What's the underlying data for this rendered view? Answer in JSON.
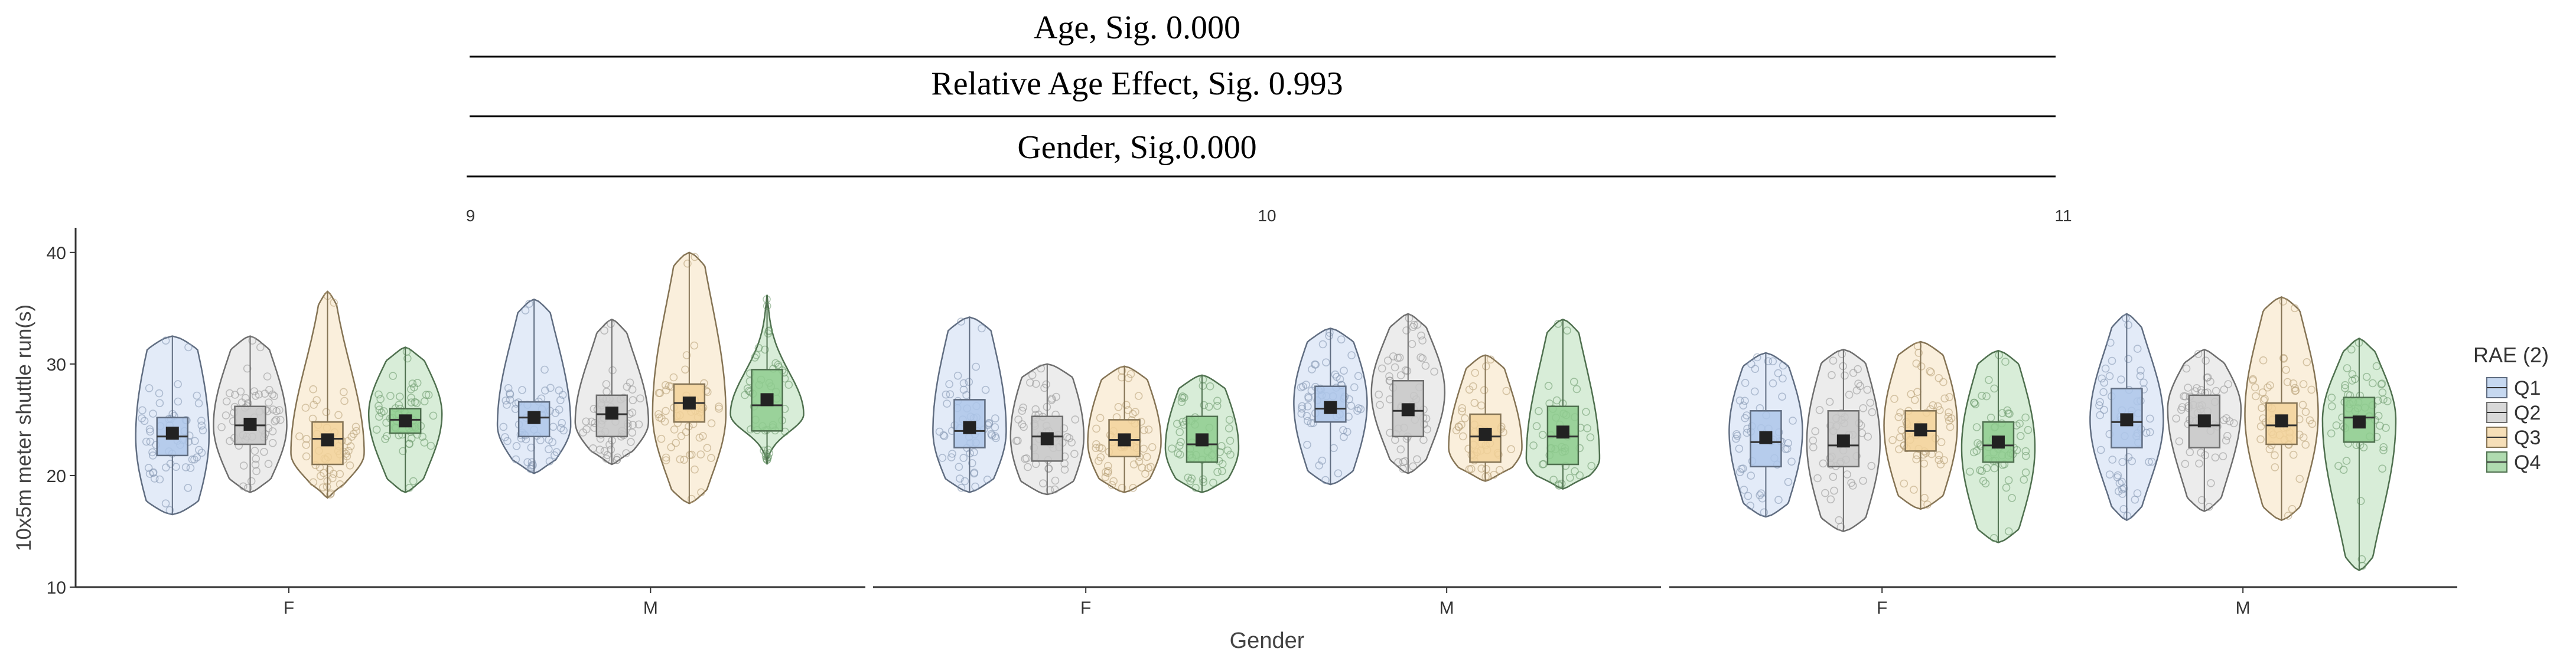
{
  "header": {
    "age_sig": "Age, Sig. 0.000",
    "rae_sig": "Relative Age Effect, Sig. 0.993",
    "gender_sig": "Gender, Sig.0.000"
  },
  "colors": {
    "Q1": "#aec7ea",
    "Q2": "#c8c8c8",
    "Q3": "#f2d29a",
    "Q4": "#8fcc8f",
    "axis": "#333333",
    "mean": "#222222"
  },
  "chart_data": {
    "type": "violin",
    "title": "",
    "xlabel": "Gender",
    "ylabel": "10x5m meter shuttle run(s)",
    "ylim": [
      10,
      42
    ],
    "yticks": [
      10,
      20,
      30,
      40
    ],
    "genders": [
      "F",
      "M"
    ],
    "legend": {
      "title": "RAE (2)",
      "position": "right",
      "entries": [
        "Q1",
        "Q2",
        "Q3",
        "Q4"
      ]
    },
    "facets": [
      {
        "label": "9",
        "groups": {
          "F": [
            {
              "q": "Q1",
              "min": 16.5,
              "max": 32.5,
              "q1": 21.8,
              "median": 23.5,
              "q3": 25.2,
              "mean": 23.8,
              "mode": 23.5,
              "spread": 1.0
            },
            {
              "q": "Q2",
              "min": 18.5,
              "max": 32.5,
              "q1": 22.8,
              "median": 24.5,
              "q3": 26.2,
              "mean": 24.6,
              "mode": 24.5,
              "spread": 0.75
            },
            {
              "q": "Q3",
              "min": 18.0,
              "max": 36.5,
              "q1": 21.0,
              "median": 23.3,
              "q3": 24.8,
              "mean": 23.2,
              "mode": 22.0,
              "spread": 0.55
            },
            {
              "q": "Q4",
              "min": 18.5,
              "max": 31.5,
              "q1": 23.8,
              "median": 25.0,
              "q3": 26.0,
              "mean": 24.9,
              "mode": 25.5,
              "spread": 0.7
            }
          ],
          "M": [
            {
              "q": "Q1",
              "min": 20.2,
              "max": 35.8,
              "q1": 23.5,
              "median": 25.2,
              "q3": 26.6,
              "mean": 25.2,
              "mode": 24.5,
              "spread": 0.7
            },
            {
              "q": "Q2",
              "min": 21.0,
              "max": 34.0,
              "q1": 23.5,
              "median": 25.5,
              "q3": 27.2,
              "mean": 25.6,
              "mode": 24.8,
              "spread": 0.65
            },
            {
              "q": "Q3",
              "min": 17.5,
              "max": 40.0,
              "q1": 24.8,
              "median": 26.5,
              "q3": 28.2,
              "mean": 26.5,
              "mode": 25.5,
              "spread": 0.7
            },
            {
              "q": "Q4",
              "min": 21.0,
              "max": 36.2,
              "q1": 24.0,
              "median": 26.3,
              "q3": 29.5,
              "mean": 26.8,
              "mode": 25.5,
              "spread": 0.35
            }
          ]
        }
      },
      {
        "label": "10",
        "groups": {
          "F": [
            {
              "q": "Q1",
              "min": 18.5,
              "max": 34.2,
              "q1": 22.5,
              "median": 24.0,
              "q3": 26.8,
              "mean": 24.3,
              "mode": 24.0,
              "spread": 0.85
            },
            {
              "q": "Q2",
              "min": 18.3,
              "max": 30.0,
              "q1": 21.3,
              "median": 23.5,
              "q3": 25.3,
              "mean": 23.3,
              "mode": 23.5,
              "spread": 0.95
            },
            {
              "q": "Q3",
              "min": 18.5,
              "max": 29.8,
              "q1": 21.7,
              "median": 23.2,
              "q3": 25.0,
              "mean": 23.2,
              "mode": 23.0,
              "spread": 0.85
            },
            {
              "q": "Q4",
              "min": 18.5,
              "max": 29.0,
              "q1": 21.2,
              "median": 22.8,
              "q3": 25.3,
              "mean": 23.2,
              "mode": 22.5,
              "spread": 0.85
            }
          ],
          "M": [
            {
              "q": "Q1",
              "min": 19.2,
              "max": 33.2,
              "q1": 24.8,
              "median": 26.0,
              "q3": 28.0,
              "mean": 26.1,
              "mode": 26.5,
              "spread": 0.85
            },
            {
              "q": "Q2",
              "min": 20.2,
              "max": 34.5,
              "q1": 23.5,
              "median": 25.8,
              "q3": 28.5,
              "mean": 25.9,
              "mode": 27.5,
              "spread": 0.7
            },
            {
              "q": "Q3",
              "min": 19.5,
              "max": 30.8,
              "q1": 21.2,
              "median": 23.5,
              "q3": 25.5,
              "mean": 23.7,
              "mode": 22.5,
              "spread": 0.75
            },
            {
              "q": "Q4",
              "min": 18.8,
              "max": 34.0,
              "q1": 21.0,
              "median": 23.5,
              "q3": 26.2,
              "mean": 23.9,
              "mode": 21.5,
              "spread": 0.7
            }
          ]
        }
      },
      {
        "label": "11",
        "groups": {
          "F": [
            {
              "q": "Q1",
              "min": 16.3,
              "max": 31.0,
              "q1": 20.8,
              "median": 23.0,
              "q3": 25.8,
              "mean": 23.4,
              "mode": 24.0,
              "spread": 0.85
            },
            {
              "q": "Q2",
              "min": 15.0,
              "max": 31.3,
              "q1": 20.8,
              "median": 22.7,
              "q3": 25.8,
              "mean": 23.1,
              "mode": 23.0,
              "spread": 0.85
            },
            {
              "q": "Q3",
              "min": 17.0,
              "max": 32.0,
              "q1": 22.2,
              "median": 24.0,
              "q3": 25.8,
              "mean": 24.1,
              "mode": 24.5,
              "spread": 0.85
            },
            {
              "q": "Q4",
              "min": 14.0,
              "max": 31.2,
              "q1": 21.2,
              "median": 22.7,
              "q3": 24.8,
              "mean": 23.0,
              "mode": 22.5,
              "spread": 0.8
            }
          ],
          "M": [
            {
              "q": "Q1",
              "min": 16.0,
              "max": 34.5,
              "q1": 22.5,
              "median": 24.8,
              "q3": 27.8,
              "mean": 25.0,
              "mode": 25.0,
              "spread": 0.65
            },
            {
              "q": "Q2",
              "min": 16.8,
              "max": 31.3,
              "q1": 22.5,
              "median": 24.5,
              "q3": 27.2,
              "mean": 24.9,
              "mode": 26.0,
              "spread": 0.7
            },
            {
              "q": "Q3",
              "min": 16.0,
              "max": 36.0,
              "q1": 22.8,
              "median": 24.5,
              "q3": 26.5,
              "mean": 24.9,
              "mode": 25.5,
              "spread": 0.75
            },
            {
              "q": "Q4",
              "min": 11.5,
              "max": 32.3,
              "q1": 23.0,
              "median": 25.2,
              "q3": 27.0,
              "mean": 24.8,
              "mode": 25.0,
              "spread": 0.65
            }
          ]
        }
      }
    ]
  }
}
